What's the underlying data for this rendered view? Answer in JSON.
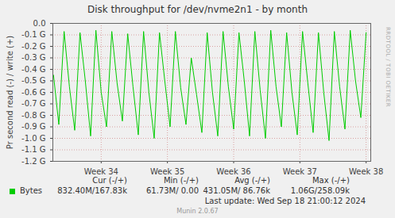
{
  "chart_data": {
    "type": "line",
    "title": "Disk throughput for /dev/nvme2n1 - by month",
    "y_label": "Pr second read (-) / write (+)",
    "x": [
      33.28,
      33.36,
      33.44,
      33.52,
      33.6,
      33.68,
      33.76,
      33.84,
      33.92,
      34.0,
      34.08,
      34.16,
      34.24,
      34.32,
      34.4,
      34.48,
      34.56,
      34.64,
      34.72,
      34.8,
      34.88,
      34.96,
      35.04,
      35.12,
      35.2,
      35.28,
      35.36,
      35.44,
      35.52,
      35.6,
      35.68,
      35.76,
      35.84,
      35.92,
      36.0,
      36.08,
      36.16,
      36.24,
      36.32,
      36.4,
      36.48,
      36.56,
      36.64,
      36.72,
      36.8,
      36.88,
      36.96,
      37.04,
      37.12,
      37.2,
      37.28,
      37.36,
      37.44,
      37.52,
      37.6,
      37.68,
      37.76,
      37.84,
      37.92,
      38.0
    ],
    "series": [
      {
        "name": "Bytes",
        "color": "#00cc00",
        "values": [
          -0.45,
          -0.88,
          -0.07,
          -0.55,
          -0.93,
          -0.08,
          -0.5,
          -0.98,
          -0.06,
          -0.6,
          -0.9,
          -0.07,
          -0.52,
          -0.85,
          -0.09,
          -0.55,
          -0.97,
          -0.07,
          -0.6,
          -1.0,
          -0.08,
          -0.5,
          -0.9,
          -0.07,
          -0.56,
          -0.88,
          -0.3,
          -0.62,
          -0.95,
          -0.08,
          -0.6,
          -0.98,
          -0.07,
          -0.55,
          -0.92,
          -0.08,
          -0.5,
          -0.98,
          -0.07,
          -0.58,
          -1.0,
          -0.06,
          -0.55,
          -0.9,
          -0.08,
          -0.6,
          -0.97,
          -0.07,
          -0.52,
          -0.95,
          -0.08,
          -0.6,
          -1.02,
          -0.07,
          -0.55,
          -0.92,
          -0.06,
          -0.5,
          -0.82,
          -0.08
        ]
      }
    ],
    "xlim": [
      33.27,
      38.07
    ],
    "xticks": [
      {
        "value": 34,
        "label": "Week 34"
      },
      {
        "value": 35,
        "label": "Week 35"
      },
      {
        "value": 36,
        "label": "Week 36"
      },
      {
        "value": 37,
        "label": "Week 37"
      },
      {
        "value": 38,
        "label": "Week 38"
      }
    ],
    "ylim": [
      -1.2,
      0
    ],
    "yticks": [
      {
        "value": 0,
        "label": "0.0"
      },
      {
        "value": -0.1,
        "label": "-0.1 G"
      },
      {
        "value": -0.2,
        "label": "-0.2 G"
      },
      {
        "value": -0.3,
        "label": "-0.3 G"
      },
      {
        "value": -0.4,
        "label": "-0.4 G"
      },
      {
        "value": -0.5,
        "label": "-0.5 G"
      },
      {
        "value": -0.6,
        "label": "-0.6 G"
      },
      {
        "value": -0.7,
        "label": "-0.7 G"
      },
      {
        "value": -0.8,
        "label": "-0.8 G"
      },
      {
        "value": -0.9,
        "label": "-0.9 G"
      },
      {
        "value": -1.0,
        "label": "-1.0 G"
      },
      {
        "value": -1.1,
        "label": "-1.1 G"
      },
      {
        "value": -1.2,
        "label": "-1.2 G"
      }
    ],
    "grid": true,
    "summary": {
      "columns": [
        "Cur (-/+)",
        "Min (-/+)",
        "Avg (-/+)",
        "Max (-/+)"
      ],
      "rows": [
        {
          "name": "Bytes",
          "cells": [
            "832.40M/167.83k",
            "61.73M/ 0.00",
            "431.05M/ 86.76k",
            "1.06G/258.09k"
          ]
        }
      ]
    },
    "footer": "Last update: Wed Sep 18 21:00:12 2024",
    "credit": "Munin 2.0.67",
    "watermark": "RRDTOOL / TOBI OETIKER"
  }
}
